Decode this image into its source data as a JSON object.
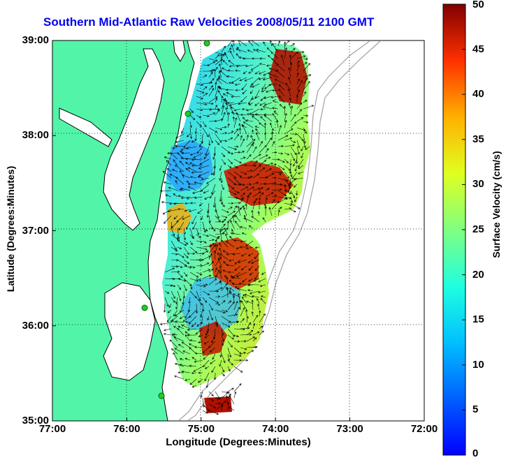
{
  "title": "Southern Mid-Atlantic Raw Velocities 2008/05/11 2100 GMT",
  "xlabel": "Longitude (Degrees:Minutes)",
  "ylabel": "Latitude (Degrees:Minutes)",
  "colorbar_label": "Surface Velocity (cm/s)",
  "colors": {
    "land": "#52f5a8",
    "water": "#ffffff",
    "bathymetry": "#a0a0a0",
    "station": "#22cc22"
  },
  "chart_data": {
    "type": "heatmap",
    "title": "Southern Mid-Atlantic Raw Velocities 2008/05/11 2100 GMT",
    "xlabel": "Longitude (Degrees:Minutes)",
    "ylabel": "Latitude (Degrees:Minutes)",
    "x_ticks": [
      "77:00",
      "76:00",
      "75:00",
      "74:00",
      "73:00",
      "72:00"
    ],
    "y_ticks": [
      "39:00",
      "38:00",
      "37:00",
      "36:00",
      "35:00"
    ],
    "xlim": [
      -77,
      -72
    ],
    "ylim": [
      35,
      39
    ],
    "grid": true,
    "colorbar": {
      "label": "Surface Velocity (cm/s)",
      "ticks": [
        "0",
        "5",
        "10",
        "15",
        "20",
        "25",
        "30",
        "35",
        "40",
        "45",
        "50"
      ],
      "range": [
        0,
        50
      ],
      "colormap": "jet"
    }
  }
}
